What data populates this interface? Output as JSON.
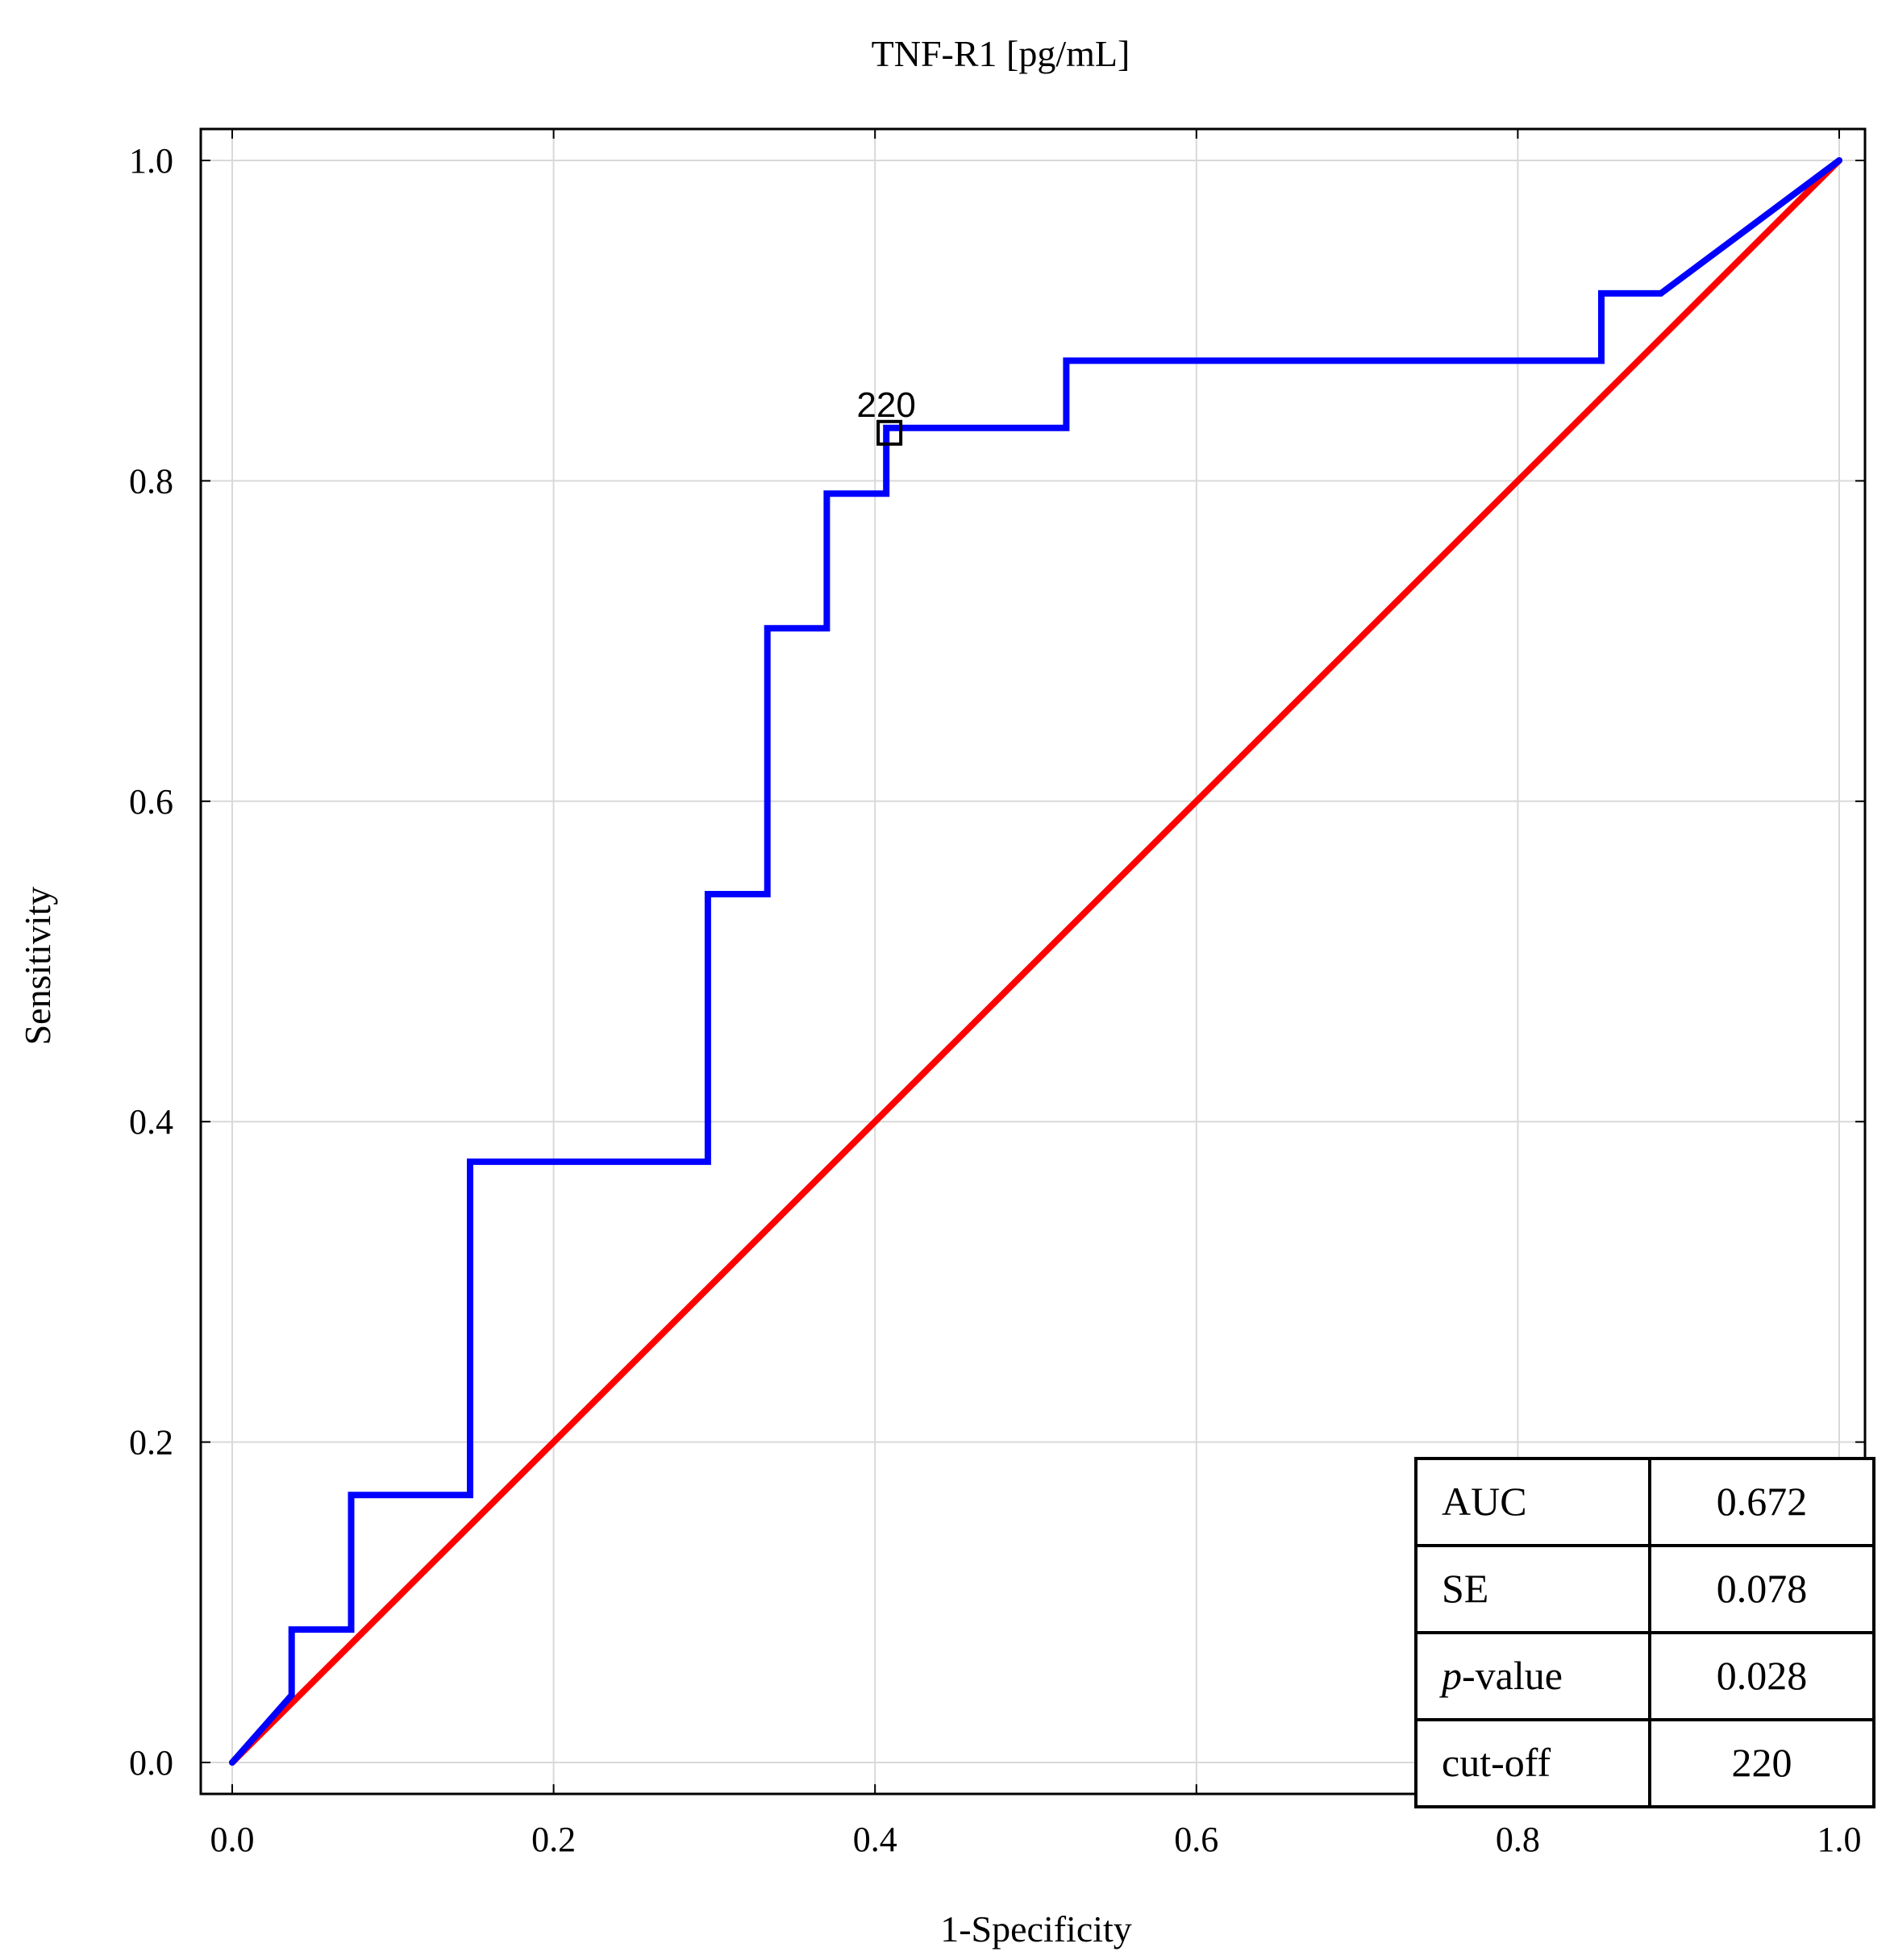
{
  "chart_data": {
    "type": "line",
    "title": "TNF-R1 [pg/mL]",
    "xlabel": "1-Specificity",
    "ylabel": "Sensitivity",
    "xlim": [
      0,
      1
    ],
    "ylim": [
      0,
      1
    ],
    "grid": true,
    "x_ticks": [
      "0.0",
      "0.2",
      "0.4",
      "0.6",
      "0.8",
      "1.0"
    ],
    "y_ticks": [
      "0.0",
      "0.2",
      "0.4",
      "0.6",
      "0.8",
      "1.0"
    ],
    "series": [
      {
        "name": "ROC curve",
        "color": "#0000ff",
        "points": [
          [
            0,
            0
          ],
          [
            0.037,
            0.042
          ],
          [
            0.037,
            0.083
          ],
          [
            0.074,
            0.083
          ],
          [
            0.074,
            0.167
          ],
          [
            0.148,
            0.167
          ],
          [
            0.148,
            0.375
          ],
          [
            0.296,
            0.375
          ],
          [
            0.296,
            0.542
          ],
          [
            0.333,
            0.542
          ],
          [
            0.333,
            0.708
          ],
          [
            0.37,
            0.708
          ],
          [
            0.37,
            0.792
          ],
          [
            0.407,
            0.792
          ],
          [
            0.407,
            0.833
          ],
          [
            0.519,
            0.833
          ],
          [
            0.519,
            0.875
          ],
          [
            0.852,
            0.875
          ],
          [
            0.852,
            0.917
          ],
          [
            0.889,
            0.917
          ],
          [
            1,
            1
          ]
        ]
      },
      {
        "name": "Reference line",
        "color": "#ff0000",
        "points": [
          [
            0,
            0
          ],
          [
            1,
            1
          ]
        ]
      }
    ],
    "cutoff_marker": {
      "x": 0.409,
      "y": 0.83,
      "label": "220"
    },
    "stats_table": [
      {
        "label": "AUC",
        "value": "0.672"
      },
      {
        "label": "SE",
        "value": "0.078"
      },
      {
        "label": "p-value",
        "value": "0.028"
      },
      {
        "label": "cut-off",
        "value": "220"
      }
    ]
  }
}
